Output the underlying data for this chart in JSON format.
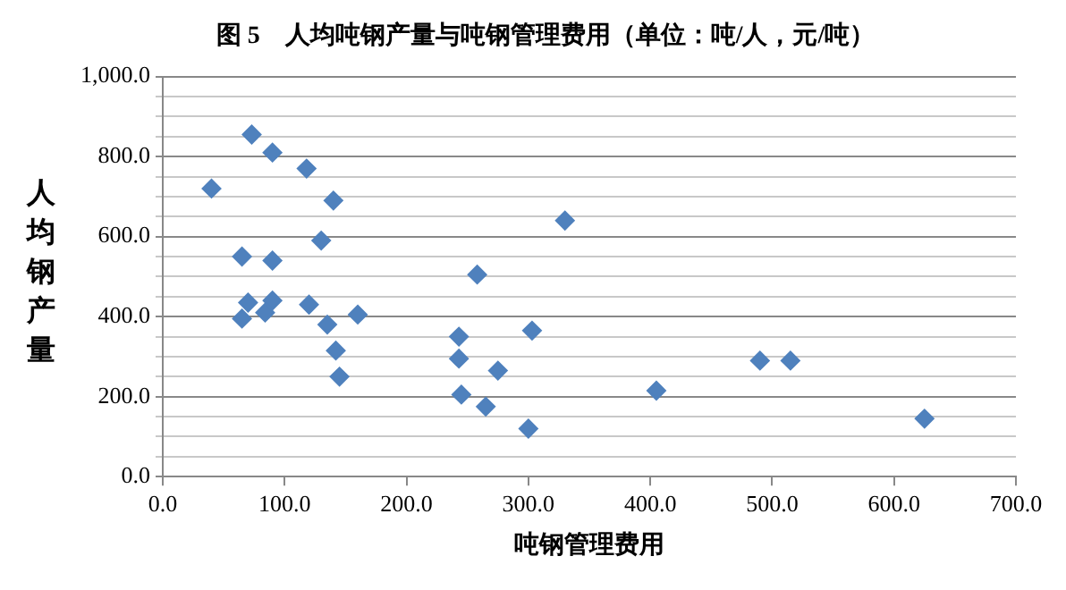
{
  "chart_data": {
    "type": "scatter",
    "title": "图 5　人均吨钢产量与吨钢管理费用（单位：吨/人，元/吨）",
    "xlabel": "吨钢管理费用",
    "ylabel": "人均钢产量",
    "x": [
      40,
      65,
      65,
      70,
      73,
      84,
      90,
      90,
      90,
      118,
      120,
      130,
      135,
      140,
      142,
      145,
      160,
      243,
      243,
      245,
      265,
      275,
      258,
      303,
      300,
      330,
      405,
      490,
      515,
      625
    ],
    "values": [
      720,
      550,
      395,
      435,
      855,
      410,
      540,
      440,
      810,
      770,
      430,
      590,
      380,
      690,
      315,
      250,
      405,
      350,
      295,
      205,
      175,
      265,
      505,
      365,
      120,
      640,
      215,
      290,
      290,
      145
    ],
    "color": "#4f81bd",
    "marker": "diamond",
    "grid": "y",
    "xlim": [
      0,
      700
    ],
    "xticks": [
      {
        "value": 0,
        "label": "0.0"
      },
      {
        "value": 100,
        "label": "100.0"
      },
      {
        "value": 200,
        "label": "200.0"
      },
      {
        "value": 300,
        "label": "300.0"
      },
      {
        "value": 400,
        "label": "400.0"
      },
      {
        "value": 500,
        "label": "500.0"
      },
      {
        "value": 600,
        "label": "600.0"
      },
      {
        "value": 700,
        "label": "700.0"
      }
    ],
    "ylim": [
      0,
      1000
    ],
    "yticks": [
      {
        "value": 0,
        "label": "0.0"
      },
      {
        "value": 50,
        "label": null
      },
      {
        "value": 100,
        "label": null
      },
      {
        "value": 150,
        "label": null
      },
      {
        "value": 200,
        "label": "200.0"
      },
      {
        "value": 250,
        "label": null
      },
      {
        "value": 300,
        "label": null
      },
      {
        "value": 350,
        "label": null
      },
      {
        "value": 400,
        "label": "400.0"
      },
      {
        "value": 450,
        "label": null
      },
      {
        "value": 500,
        "label": null
      },
      {
        "value": 550,
        "label": null
      },
      {
        "value": 600,
        "label": "600.0"
      },
      {
        "value": 650,
        "label": null
      },
      {
        "value": 700,
        "label": null
      },
      {
        "value": 750,
        "label": null
      },
      {
        "value": 800,
        "label": "800.0"
      },
      {
        "value": 850,
        "label": null
      },
      {
        "value": 900,
        "label": null
      },
      {
        "value": 950,
        "label": null
      },
      {
        "value": 1000,
        "label": "1,000.0"
      }
    ]
  }
}
